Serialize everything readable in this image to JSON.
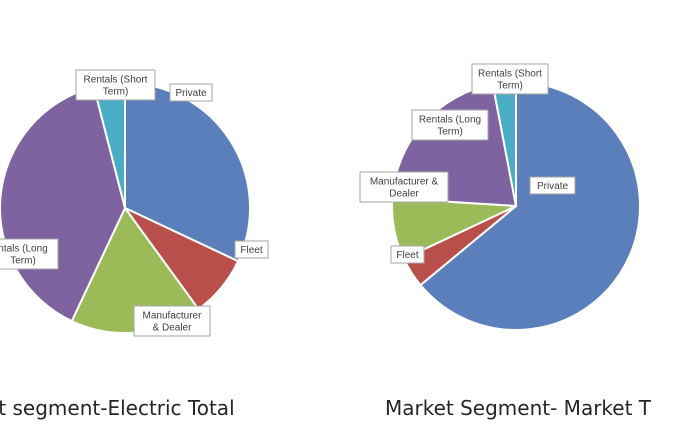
{
  "chart_data": [
    {
      "type": "pie",
      "title": "et segment-Electric Total",
      "slices": [
        {
          "label": "Private",
          "value": 32,
          "color": "#5b7fba"
        },
        {
          "label": "Fleet",
          "value": 8,
          "color": "#b84f4a"
        },
        {
          "label": "Manufacturer & Dealer",
          "value": 17,
          "color": "#9bbb59"
        },
        {
          "label": "Rentals (Long Term)",
          "value": 39,
          "color": "#7f62a0"
        },
        {
          "label": "Rentals (Short Term)",
          "value": 4,
          "color": "#4bacc6"
        }
      ]
    },
    {
      "type": "pie",
      "title": "Market Segment- Market T",
      "slices": [
        {
          "label": "Private",
          "value": 64,
          "color": "#5b7fba"
        },
        {
          "label": "Fleet",
          "value": 4,
          "color": "#b84f4a"
        },
        {
          "label": "Manufacturer & Dealer",
          "value": 8,
          "color": "#9bbb59"
        },
        {
          "label": "Rentals (Long Term)",
          "value": 21,
          "color": "#7f62a0"
        },
        {
          "label": "Rentals (Short Term)",
          "value": 3,
          "color": "#4bacc6"
        }
      ]
    }
  ]
}
